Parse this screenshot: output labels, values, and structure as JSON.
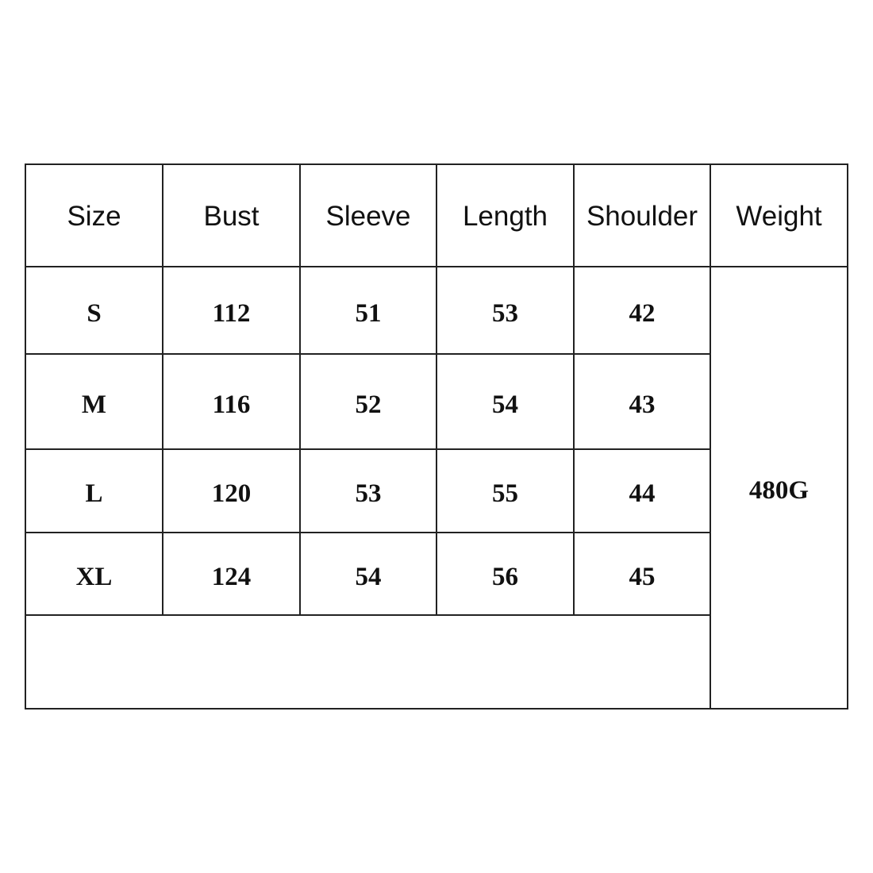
{
  "headers": [
    "Size",
    "Bust",
    "Sleeve",
    "Length",
    "Shoulder",
    "Weight"
  ],
  "rows": [
    [
      "S",
      "112",
      "51",
      "53",
      "42"
    ],
    [
      "M",
      "116",
      "52",
      "54",
      "43"
    ],
    [
      "L",
      "120",
      "53",
      "55",
      "44"
    ],
    [
      "XL",
      "124",
      "54",
      "56",
      "45"
    ]
  ],
  "weight": "480G"
}
